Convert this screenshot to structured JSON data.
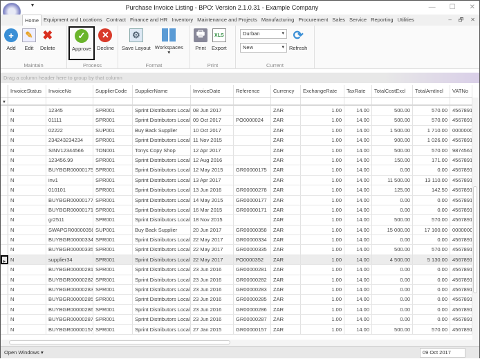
{
  "window": {
    "title": "Purchase Invoice Listing - BPO: Version 2.1.0.31 - Example Company"
  },
  "menu_tabs": [
    "Home",
    "Equipment and Locations",
    "Contract",
    "Finance and HR",
    "Inventory",
    "Maintenance and Projects",
    "Manufacturing",
    "Procurement",
    "Sales",
    "Service",
    "Reporting",
    "Utilities"
  ],
  "ribbon": {
    "maintain": {
      "label": "Maintain",
      "add": "Add",
      "edit": "Edit",
      "delete": "Delete"
    },
    "process": {
      "label": "Process",
      "approve": "Approve",
      "decline": "Decline"
    },
    "format": {
      "label": "Format",
      "save_layout": "Save Layout",
      "workspaces": "Workspaces"
    },
    "print": {
      "label": "Print",
      "print": "Print",
      "export": "Export"
    },
    "current": {
      "label": "Current",
      "site": "Durban",
      "status": "New",
      "refresh": "Refresh"
    }
  },
  "groupby_hint": "Drag a column header here to group by that column",
  "columns": [
    "InvoiceStatus",
    "InvoiceNo",
    "SupplierCode",
    "SupplierName",
    "InvoiceDate",
    "Reference",
    "Currency",
    "ExchangeRate",
    "TaxRate",
    "TotalCostExcl",
    "TotalAmtIncl",
    "VATNo"
  ],
  "selected_row": 15,
  "rows": [
    [
      "N",
      "12345",
      "SPR001",
      "Sprint Distributors Local",
      "08 Jun 2017",
      "",
      "ZAR",
      "1.00",
      "14.00",
      "500.00",
      "570.00",
      "4567891"
    ],
    [
      "N",
      "01111",
      "SPR001",
      "Sprint Distributors Local",
      "09 Oct 2017",
      "PO0000024",
      "ZAR",
      "1.00",
      "14.00",
      "500.00",
      "570.00",
      "4567891"
    ],
    [
      "N",
      "02222",
      "SUP001",
      "Buy Back Supplier",
      "10 Oct 2017",
      "",
      "ZAR",
      "1.00",
      "14.00",
      "1 500.00",
      "1 710.00",
      "000000C"
    ],
    [
      "N",
      "234243234234",
      "SPR001",
      "Sprint Distributors Local",
      "11 Nov 2015",
      "",
      "ZAR",
      "1.00",
      "14.00",
      "900.00",
      "1 026.00",
      "4567891"
    ],
    [
      "N",
      "SINV12344566",
      "TON001",
      "Tonys Copy Shop",
      "12 Apr 2017",
      "",
      "ZAR",
      "1.00",
      "14.00",
      "500.00",
      "570.00",
      "9874561"
    ],
    [
      "N",
      "123456.99",
      "SPR001",
      "Sprint Distributors Local",
      "12 Aug 2016",
      "",
      "ZAR",
      "1.00",
      "14.00",
      "150.00",
      "171.00",
      "4567891"
    ],
    [
      "N",
      "BUYBGR00000175",
      "SPR001",
      "Sprint Distributors Local",
      "12 May 2015",
      "GR00000175",
      "ZAR",
      "1.00",
      "14.00",
      "0.00",
      "0.00",
      "4567891"
    ],
    [
      "N",
      "inv1",
      "SPR001",
      "Sprint Distributors Local",
      "13 Apr 2017",
      "",
      "ZAR",
      "1.00",
      "14.00",
      "11 500.00",
      "13 110.00",
      "4567891"
    ],
    [
      "N",
      "010101",
      "SPR001",
      "Sprint Distributors Local",
      "13 Jun 2016",
      "GR00000278",
      "ZAR",
      "1.00",
      "14.00",
      "125.00",
      "142.50",
      "4567891"
    ],
    [
      "N",
      "BUYBGR00000177",
      "SPR001",
      "Sprint Distributors Local",
      "14 May 2015",
      "GR00000177",
      "ZAR",
      "1.00",
      "14.00",
      "0.00",
      "0.00",
      "4567891"
    ],
    [
      "N",
      "BUYBGR00000171",
      "SPR001",
      "Sprint Distributors Local",
      "16 Mar 2015",
      "GR00000171",
      "ZAR",
      "1.00",
      "14.00",
      "0.00",
      "0.00",
      "4567891"
    ],
    [
      "N",
      "gr2511",
      "SPR001",
      "Sprint Distributors Local",
      "18 Nov 2015",
      "",
      "ZAR",
      "1.00",
      "14.00",
      "500.00",
      "570.00",
      "4567891"
    ],
    [
      "N",
      "SWAPGR00000358",
      "SUP001",
      "Buy Back Supplier",
      "20 Jun 2017",
      "GR00000358",
      "ZAR",
      "1.00",
      "14.00",
      "15 000.00",
      "17 100.00",
      "000000C"
    ],
    [
      "N",
      "BUYBGR00000334",
      "SPR001",
      "Sprint Distributors Local",
      "22 May 2017",
      "GR00000334",
      "ZAR",
      "1.00",
      "14.00",
      "0.00",
      "0.00",
      "4567891"
    ],
    [
      "N",
      "BUYBGR00000335",
      "SPR001",
      "Sprint Distributors Local",
      "22 May 2017",
      "GR00000335",
      "ZAR",
      "1.00",
      "14.00",
      "500.00",
      "570.00",
      "4567891"
    ],
    [
      "N",
      "supplier34",
      "SPR001",
      "Sprint Distributors Local",
      "22 May 2017",
      "PO0000352",
      "ZAR",
      "1.00",
      "14.00",
      "4 500.00",
      "5 130.00",
      "4567891"
    ],
    [
      "N",
      "BUYBGR00000281",
      "SPR001",
      "Sprint Distributors Local",
      "23 Jun 2016",
      "GR00000281",
      "ZAR",
      "1.00",
      "14.00",
      "0.00",
      "0.00",
      "4567891"
    ],
    [
      "N",
      "BUYBGR00000282",
      "SPR001",
      "Sprint Distributors Local",
      "23 Jun 2016",
      "GR00000282",
      "ZAR",
      "1.00",
      "14.00",
      "0.00",
      "0.00",
      "4567891"
    ],
    [
      "N",
      "BUYBGR00000283",
      "SPR001",
      "Sprint Distributors Local",
      "23 Jun 2016",
      "GR00000283",
      "ZAR",
      "1.00",
      "14.00",
      "0.00",
      "0.00",
      "4567891"
    ],
    [
      "N",
      "BUYBGR00000285",
      "SPR001",
      "Sprint Distributors Local",
      "23 Jun 2016",
      "GR00000285",
      "ZAR",
      "1.00",
      "14.00",
      "0.00",
      "0.00",
      "4567891"
    ],
    [
      "N",
      "BUYBGR00000286",
      "SPR001",
      "Sprint Distributors Local",
      "23 Jun 2016",
      "GR00000286",
      "ZAR",
      "1.00",
      "14.00",
      "0.00",
      "0.00",
      "4567891"
    ],
    [
      "N",
      "BUYBGR00000287",
      "SPR001",
      "Sprint Distributors Local",
      "23 Jun 2016",
      "GR00000287",
      "ZAR",
      "1.00",
      "14.00",
      "0.00",
      "0.00",
      "4567891"
    ],
    [
      "N",
      "BUYBGR00000157",
      "SPR001",
      "Sprint Distributors Local",
      "27 Jan 2015",
      "GR00000157",
      "ZAR",
      "1.00",
      "14.00",
      "500.00",
      "570.00",
      "4567891"
    ]
  ],
  "status": {
    "open_windows": "Open Windows",
    "date": "09 Oct 2017"
  }
}
